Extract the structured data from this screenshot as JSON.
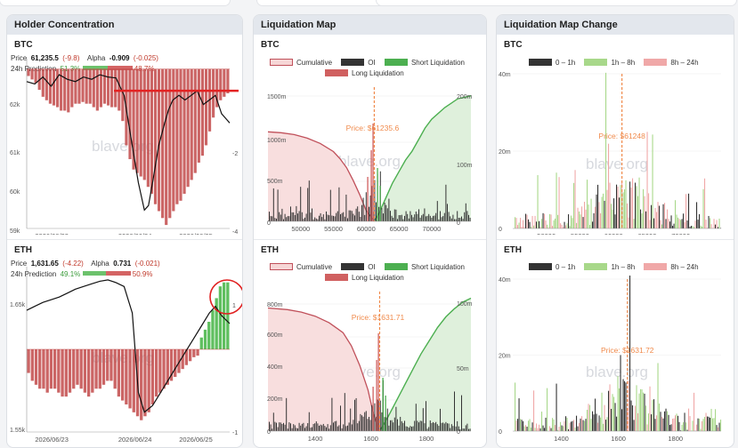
{
  "watermark": "blave.org",
  "panels": {
    "holder": {
      "title": "Holder Concentration",
      "btc": {
        "asset": "BTC",
        "price_label": "Price",
        "price": "61,235.5",
        "price_change": "(-9.8)",
        "alpha_label": "Alpha",
        "alpha": "-0.909",
        "alpha_change": "(-0.025)",
        "pred_label": "24h Prediction",
        "pred_up": "51.3%",
        "pred_down": "48.7%"
      },
      "eth": {
        "asset": "ETH",
        "price_label": "Price",
        "price": "1,631.65",
        "price_change": "(-4.22)",
        "alpha_label": "Alpha",
        "alpha": "0.731",
        "alpha_change": "(-0.021)",
        "pred_label": "24h Prediction",
        "pred_up": "49.1%",
        "pred_down": "50.9%"
      }
    },
    "liqmap": {
      "title": "Liquidation Map",
      "btc_title": "BTC",
      "eth_title": "ETH",
      "legend": {
        "cumulative": "Cumulative",
        "oi": "OI",
        "short": "Short Liquidation",
        "long": "Long Liquidation"
      }
    },
    "liqchange": {
      "title": "Liquidation Map Change",
      "btc_title": "BTC",
      "eth_title": "ETH",
      "legend": {
        "a": "0 – 1h",
        "b": "1h – 8h",
        "c": "8h – 24h"
      }
    }
  },
  "chart_data": [
    {
      "id": "btc_holder",
      "type": "line",
      "x_ticks": [
        "2026/06/23",
        "2026/06/24",
        "2026/06/25"
      ],
      "y_left_ticks": [
        "62k",
        "61k",
        "60k",
        "59k"
      ],
      "y_right_ticks": [
        "-2",
        "-4"
      ],
      "price_x": [
        0,
        0.04,
        0.08,
        0.12,
        0.16,
        0.2,
        0.24,
        0.28,
        0.32,
        0.36,
        0.4,
        0.44,
        0.48,
        0.52,
        0.55,
        0.58,
        0.6,
        0.62,
        0.65,
        0.68,
        0.7,
        0.72,
        0.75,
        0.78,
        0.81,
        0.84,
        0.87,
        0.9,
        0.93,
        0.96,
        1.0
      ],
      "price_y": [
        62200,
        62150,
        62300,
        62100,
        62350,
        62250,
        62200,
        62300,
        62250,
        62350,
        62300,
        62280,
        61900,
        60800,
        60000,
        59400,
        59500,
        60000,
        60800,
        61300,
        61600,
        61800,
        61900,
        61800,
        61900,
        62000,
        61700,
        61800,
        61900,
        61500,
        61300
      ],
      "price_range": [
        59000,
        62700
      ],
      "alpha_bars": [
        -0.2,
        -0.3,
        -0.4,
        -0.6,
        -0.8,
        -0.9,
        -1.0,
        -1.05,
        -1.1,
        -1.2,
        -1.2,
        -1.25,
        -1.1,
        -1.0,
        -1.0,
        -0.95,
        -1.0,
        -1.0,
        -1.1,
        -1.2,
        -1.1,
        -1.0,
        -1.05,
        -1.1,
        -1.1,
        -1.2,
        -1.5,
        -2.2,
        -2.6,
        -2.9,
        -3.0,
        -3.1,
        -3.2,
        -3.4,
        -3.6,
        -3.9,
        -4.1,
        -4.3,
        -4.5,
        -4.3,
        -4.1,
        -3.9,
        -3.8,
        -3.6,
        -3.4,
        -3.2,
        -3.0,
        -2.7,
        -2.5,
        -2.2,
        -1.8,
        -1.4,
        -1.1,
        -0.9,
        -0.8,
        -0.7
      ],
      "alpha_range": [
        -4.6,
        0.3
      ],
      "resistance_level": 62000
    },
    {
      "id": "eth_holder",
      "type": "line",
      "x_ticks": [
        "2026/06/23",
        "2026/06/24",
        "2026/06/25"
      ],
      "y_left_ticks": [
        "1.65k",
        "1.55k"
      ],
      "y_right_ticks": [
        "1",
        "-1"
      ],
      "price_x": [
        0,
        0.04,
        0.08,
        0.12,
        0.16,
        0.2,
        0.24,
        0.28,
        0.32,
        0.36,
        0.4,
        0.44,
        0.48,
        0.52,
        0.55,
        0.58,
        0.62,
        0.66,
        0.7,
        0.74,
        0.78,
        0.82,
        0.86,
        0.9,
        0.93,
        0.96,
        1.0
      ],
      "price_y": [
        1642,
        1645,
        1648,
        1650,
        1652,
        1655,
        1658,
        1660,
        1662,
        1664,
        1665,
        1663,
        1660,
        1640,
        1580,
        1565,
        1570,
        1580,
        1590,
        1600,
        1610,
        1620,
        1630,
        1640,
        1645,
        1638,
        1632
      ],
      "price_range": [
        1550,
        1675
      ],
      "alpha_bars": [
        -0.3,
        -0.4,
        -0.45,
        -0.5,
        -0.5,
        -0.55,
        -0.5,
        -0.5,
        -0.55,
        -0.6,
        -0.6,
        -0.55,
        -0.5,
        -0.45,
        -0.5,
        -0.55,
        -0.6,
        -0.55,
        -0.5,
        -0.5,
        -0.45,
        -0.4,
        -0.4,
        -0.5,
        -0.6,
        -0.65,
        -0.7,
        -0.75,
        -0.8,
        -0.85,
        -0.9,
        -0.85,
        -0.8,
        -0.7,
        -0.6,
        -0.55,
        -0.5,
        -0.45,
        -0.4,
        -0.35,
        -0.3,
        -0.25,
        -0.2,
        -0.15,
        -0.1,
        -0.08,
        0.15,
        0.25,
        0.35,
        0.5,
        0.65,
        0.8,
        0.85,
        0.85
      ],
      "alpha_range": [
        -1.05,
        1.05
      ]
    },
    {
      "id": "btc_liq",
      "type": "bar",
      "x_ticks": [
        "50000",
        "55000",
        "60000",
        "65000",
        "70000"
      ],
      "x_range": [
        45000,
        76000
      ],
      "y_left_ticks": [
        "1500m",
        "1000m",
        "500m",
        "0"
      ],
      "y_right_ticks": [
        "200m",
        "100m",
        "0"
      ],
      "current_price": 61235.6,
      "price_label": "Price: $61235.6",
      "cumulative_long_x": [
        45000,
        47000,
        49000,
        51000,
        53000,
        55000,
        56000,
        57000,
        58000,
        59000,
        60000,
        61235
      ],
      "cumulative_long_y": [
        1000,
        990,
        970,
        930,
        870,
        780,
        700,
        600,
        460,
        300,
        120,
        0
      ],
      "cumulative_short_x": [
        61235,
        62000,
        63000,
        64000,
        65000,
        66000,
        67000,
        68000,
        69000,
        70000,
        72000,
        74000,
        76000
      ],
      "cumulative_short_y": [
        0,
        15,
        40,
        65,
        85,
        105,
        120,
        140,
        160,
        175,
        195,
        210,
        215
      ],
      "y_left_max": 1500,
      "y_right_max": 230
    },
    {
      "id": "eth_liq",
      "type": "bar",
      "x_ticks": [
        "1400",
        "1600",
        "1800"
      ],
      "x_range": [
        1230,
        1960
      ],
      "y_left_ticks": [
        "800m",
        "600m",
        "400m",
        "200m",
        "0"
      ],
      "y_right_ticks": [
        "100m",
        "50m",
        "0"
      ],
      "current_price": 1631.71,
      "price_label": "Price: $1631.71",
      "cumulative_long_x": [
        1230,
        1300,
        1350,
        1400,
        1450,
        1500,
        1530,
        1560,
        1590,
        1610,
        1631
      ],
      "cumulative_long_y": [
        750,
        740,
        725,
        700,
        660,
        600,
        520,
        400,
        250,
        100,
        0
      ],
      "cumulative_short_x": [
        1631,
        1660,
        1690,
        1720,
        1750,
        1780,
        1810,
        1840,
        1870,
        1900,
        1930,
        1960
      ],
      "cumulative_short_y": [
        0,
        10,
        22,
        34,
        46,
        58,
        68,
        78,
        86,
        92,
        97,
        100
      ],
      "y_left_max": 850,
      "y_right_max": 105
    },
    {
      "id": "btc_change",
      "type": "bar",
      "x_ticks": [
        "50000",
        "55000",
        "60000",
        "65000",
        "70000"
      ],
      "x_range": [
        45000,
        76000
      ],
      "y_ticks": [
        "40m",
        "20m",
        "0"
      ],
      "y_max": 40,
      "current_price": 61248,
      "price_label": "Price: $61248"
    },
    {
      "id": "eth_change",
      "type": "bar",
      "x_ticks": [
        "1400",
        "1600",
        "1800"
      ],
      "x_range": [
        1230,
        1960
      ],
      "y_ticks": [
        "40m",
        "20m",
        "0"
      ],
      "y_max": 40,
      "current_price": 1631.72,
      "price_label": "Price: $1631.72"
    }
  ]
}
